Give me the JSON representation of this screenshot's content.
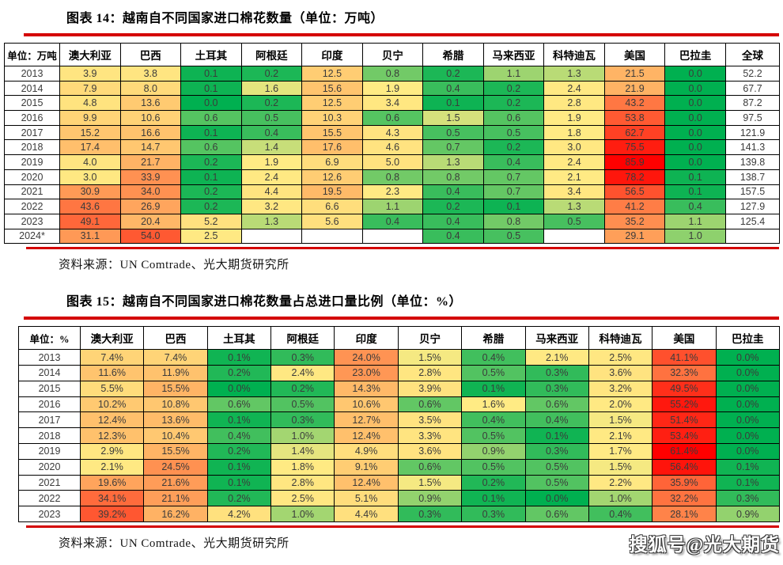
{
  "page": {
    "watermark": "搜狐号@光大期货"
  },
  "heatmap_colors": {
    "min": "#00b050",
    "mid": "#ffeb84",
    "max": "#ff0000"
  },
  "tables": [
    {
      "name": "figure-14-table",
      "title": "图表 14：越南自不同国家进口棉花数量（单位：万吨）",
      "unit_header": "单位：万吨",
      "columns": [
        "澳大利亚",
        "巴西",
        "土耳其",
        "阿根廷",
        "印度",
        "贝宁",
        "希腊",
        "马来西亚",
        "科特迪瓦",
        "美国",
        "巴拉圭",
        "全球"
      ],
      "uncolored_columns": [
        "全球"
      ],
      "rows": [
        {
          "year": "2013",
          "values": [
            "3.9",
            "3.8",
            "0.1",
            "0.2",
            "12.5",
            "0.8",
            "0.2",
            "1.1",
            "1.3",
            "21.5",
            "0.0",
            "52.2"
          ]
        },
        {
          "year": "2014",
          "values": [
            "7.9",
            "8.0",
            "0.1",
            "1.6",
            "15.6",
            "1.9",
            "0.4",
            "0.2",
            "2.4",
            "21.9",
            "0.0",
            "67.7"
          ]
        },
        {
          "year": "2015",
          "values": [
            "4.8",
            "13.6",
            "0.0",
            "0.2",
            "12.5",
            "3.4",
            "0.1",
            "0.2",
            "2.8",
            "43.2",
            "0.0",
            "87.2"
          ]
        },
        {
          "year": "2016",
          "values": [
            "9.9",
            "10.6",
            "0.6",
            "0.5",
            "10.3",
            "0.6",
            "1.5",
            "0.6",
            "1.9",
            "53.8",
            "0.0",
            "97.5"
          ]
        },
        {
          "year": "2017",
          "values": [
            "15.2",
            "16.6",
            "0.1",
            "0.4",
            "15.5",
            "4.3",
            "0.5",
            "0.5",
            "1.8",
            "62.7",
            "0.0",
            "121.9"
          ]
        },
        {
          "year": "2018",
          "values": [
            "17.4",
            "14.7",
            "0.6",
            "1.4",
            "17.6",
            "4.6",
            "0.7",
            "0.2",
            "3.0",
            "75.5",
            "0.0",
            "141.3"
          ]
        },
        {
          "year": "2019",
          "values": [
            "4.0",
            "21.7",
            "0.2",
            "1.9",
            "6.9",
            "5.0",
            "1.3",
            "0.4",
            "2.4",
            "85.9",
            "0.0",
            "139.8"
          ]
        },
        {
          "year": "2020",
          "values": [
            "3.0",
            "33.9",
            "0.1",
            "2.4",
            "12.6",
            "0.8",
            "0.8",
            "0.7",
            "2.1",
            "78.2",
            "0.1",
            "138.7"
          ]
        },
        {
          "year": "2021",
          "values": [
            "30.9",
            "34.0",
            "0.2",
            "4.4",
            "19.5",
            "2.3",
            "0.4",
            "0.7",
            "3.4",
            "56.5",
            "0.1",
            "157.5"
          ]
        },
        {
          "year": "2022",
          "values": [
            "43.6",
            "26.9",
            "0.2",
            "3.2",
            "6.6",
            "1.1",
            "0.2",
            "0.1",
            "1.3",
            "41.2",
            "0.4",
            "127.9"
          ]
        },
        {
          "year": "2023",
          "values": [
            "49.1",
            "20.4",
            "5.2",
            "1.3",
            "5.6",
            "0.4",
            "0.4",
            "0.8",
            "0.5",
            "35.2",
            "1.1",
            "125.4"
          ]
        },
        {
          "year": "2024*",
          "values": [
            "31.1",
            "54.0",
            "2.5",
            "",
            "",
            "",
            "0.4",
            "0.5",
            "",
            "29.1",
            "1.0",
            ""
          ]
        }
      ],
      "source": "资料来源：UN Comtrade、光大期货研究所",
      "first_col_width": 70,
      "last_col_width": 68
    },
    {
      "name": "figure-15-table",
      "title": "图表 15：越南自不同国家进口棉花数量占总进口量比例（单位：%）",
      "unit_header": "单位：%",
      "columns": [
        "澳大利亚",
        "巴西",
        "土耳其",
        "阿根廷",
        "印度",
        "贝宁",
        "希腊",
        "马来西亚",
        "科特迪瓦",
        "美国",
        "巴拉圭"
      ],
      "uncolored_columns": [],
      "rows": [
        {
          "year": "2013",
          "values": [
            "7.4%",
            "7.4%",
            "0.1%",
            "0.3%",
            "24.0%",
            "1.5%",
            "0.4%",
            "2.1%",
            "2.5%",
            "41.1%",
            "0.0%"
          ]
        },
        {
          "year": "2014",
          "values": [
            "11.6%",
            "11.9%",
            "0.2%",
            "2.4%",
            "23.0%",
            "2.8%",
            "0.5%",
            "0.3%",
            "3.6%",
            "32.3%",
            "0.0%"
          ]
        },
        {
          "year": "2015",
          "values": [
            "5.5%",
            "15.5%",
            "0.0%",
            "0.2%",
            "14.3%",
            "3.9%",
            "0.1%",
            "0.3%",
            "3.2%",
            "49.5%",
            "0.0%"
          ]
        },
        {
          "year": "2016",
          "values": [
            "10.2%",
            "10.8%",
            "0.6%",
            "0.5%",
            "10.6%",
            "0.6%",
            "1.6%",
            "0.6%",
            "2.0%",
            "55.2%",
            "0.0%"
          ]
        },
        {
          "year": "2017",
          "values": [
            "12.4%",
            "13.6%",
            "0.1%",
            "0.3%",
            "12.7%",
            "3.5%",
            "0.4%",
            "0.4%",
            "1.5%",
            "51.4%",
            "0.0%"
          ]
        },
        {
          "year": "2018",
          "values": [
            "12.3%",
            "10.4%",
            "0.4%",
            "1.0%",
            "12.4%",
            "3.3%",
            "0.5%",
            "0.1%",
            "2.1%",
            "53.4%",
            "0.0%"
          ]
        },
        {
          "year": "2019",
          "values": [
            "2.9%",
            "15.5%",
            "0.2%",
            "1.4%",
            "4.9%",
            "3.6%",
            "0.9%",
            "0.3%",
            "1.7%",
            "61.4%",
            "0.0%"
          ]
        },
        {
          "year": "2020",
          "values": [
            "2.1%",
            "24.5%",
            "0.1%",
            "1.8%",
            "9.1%",
            "0.6%",
            "0.5%",
            "0.5%",
            "1.5%",
            "56.4%",
            "0.1%"
          ]
        },
        {
          "year": "2021",
          "values": [
            "19.6%",
            "21.6%",
            "0.1%",
            "2.8%",
            "12.4%",
            "1.5%",
            "0.2%",
            "0.5%",
            "2.2%",
            "35.9%",
            "0.1%"
          ]
        },
        {
          "year": "2022",
          "values": [
            "34.1%",
            "21.1%",
            "0.2%",
            "2.5%",
            "5.1%",
            "0.9%",
            "0.1%",
            "0.0%",
            "1.0%",
            "32.2%",
            "0.3%"
          ]
        },
        {
          "year": "2023",
          "values": [
            "39.2%",
            "16.2%",
            "4.2%",
            "1.0%",
            "4.4%",
            "0.3%",
            "0.3%",
            "0.6%",
            "0.4%",
            "28.1%",
            "0.9%"
          ]
        }
      ],
      "source": "资料来源：UN Comtrade、光大期货研究所",
      "first_col_width": 78,
      "last_col_width": 0
    }
  ]
}
